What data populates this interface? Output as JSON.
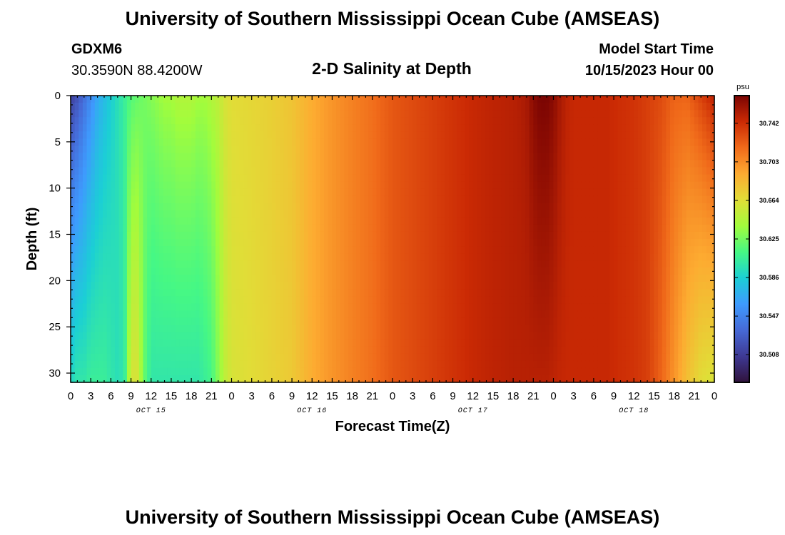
{
  "header": {
    "title": "University of Southern Mississippi Ocean Cube (AMSEAS)",
    "station_id": "GDXM6",
    "coordinates": "30.3590N  88.4200W",
    "plot_title": "2-D Salinity at Depth",
    "model_start_label": "Model Start Time",
    "model_start_value": "10/15/2023 Hour 00"
  },
  "footer": {
    "title": "University of Southern Mississippi Ocean Cube (AMSEAS)"
  },
  "chart_data": {
    "type": "heatmap",
    "xlabel": "Forecast Time(Z)",
    "ylabel": "Depth (ft)",
    "x_hours_range": [
      0,
      96
    ],
    "ylim": [
      0,
      31
    ],
    "y_inverted": true,
    "x_tick_labels": [
      "0",
      "3",
      "6",
      "9",
      "12",
      "15",
      "18",
      "21",
      "0",
      "3",
      "6",
      "9",
      "12",
      "15",
      "18",
      "21",
      "0",
      "3",
      "6",
      "9",
      "12",
      "15",
      "18",
      "21",
      "0",
      "3",
      "6",
      "9",
      "12",
      "15",
      "18",
      "21",
      "0"
    ],
    "y_tick_labels": [
      "0",
      "5",
      "10",
      "15",
      "20",
      "25",
      "30"
    ],
    "day_labels": [
      "OCT 15",
      "OCT 16",
      "OCT 17",
      "OCT 18"
    ],
    "colorbar": {
      "unit": "psu",
      "range": [
        30.48,
        30.77
      ],
      "tick_labels": [
        "30.742",
        "30.703",
        "30.664",
        "30.625",
        "30.586",
        "30.547",
        "30.508"
      ],
      "palette": [
        "#30123b",
        "#3e3994",
        "#4669d6",
        "#3e9bfe",
        "#1bcfd5",
        "#46f884",
        "#a2fc3c",
        "#e1dd37",
        "#fdab31",
        "#f06a1a",
        "#cb2a04",
        "#7a0403"
      ]
    },
    "time_profile_hours": [
      0,
      1,
      2,
      3,
      4,
      5,
      6,
      7,
      8,
      9,
      10,
      11,
      12,
      13,
      14,
      15,
      16,
      17,
      18,
      19,
      20,
      21,
      22,
      23,
      24,
      27,
      30,
      33,
      36,
      39,
      42,
      45,
      48,
      51,
      54,
      57,
      60,
      63,
      66,
      67,
      68,
      69,
      70,
      71,
      72,
      73,
      74,
      75,
      76,
      78,
      80,
      82,
      84,
      86,
      88,
      90,
      92,
      94,
      96
    ],
    "surface_salinity_psu": [
      30.51,
      30.52,
      30.535,
      30.55,
      30.565,
      30.575,
      30.585,
      30.595,
      30.605,
      30.615,
      30.62,
      30.625,
      30.63,
      30.635,
      30.64,
      30.64,
      30.645,
      30.645,
      30.645,
      30.64,
      30.64,
      30.645,
      30.65,
      30.66,
      30.665,
      30.668,
      30.672,
      30.678,
      30.69,
      30.7,
      30.708,
      30.715,
      30.725,
      30.73,
      30.735,
      30.74,
      30.745,
      30.748,
      30.75,
      30.752,
      30.755,
      30.765,
      30.77,
      30.77,
      30.765,
      30.755,
      30.748,
      30.745,
      30.745,
      30.745,
      30.745,
      30.742,
      30.74,
      30.735,
      30.73,
      30.72,
      30.72,
      30.735,
      30.75
    ],
    "bottom_salinity_psu": [
      30.59,
      30.6,
      30.6,
      30.605,
      30.605,
      30.605,
      30.6,
      30.595,
      30.6,
      30.66,
      30.66,
      30.62,
      30.6,
      30.6,
      30.6,
      30.6,
      30.6,
      30.6,
      30.6,
      30.6,
      30.605,
      30.61,
      30.63,
      30.65,
      30.66,
      30.665,
      30.67,
      30.675,
      30.69,
      30.7,
      30.708,
      30.715,
      30.725,
      30.73,
      30.735,
      30.74,
      30.745,
      30.748,
      30.75,
      30.75,
      30.75,
      30.75,
      30.75,
      30.75,
      30.748,
      30.746,
      30.745,
      30.745,
      30.745,
      30.745,
      30.745,
      30.742,
      30.74,
      30.735,
      30.72,
      30.7,
      30.68,
      30.665,
      30.66
    ]
  }
}
